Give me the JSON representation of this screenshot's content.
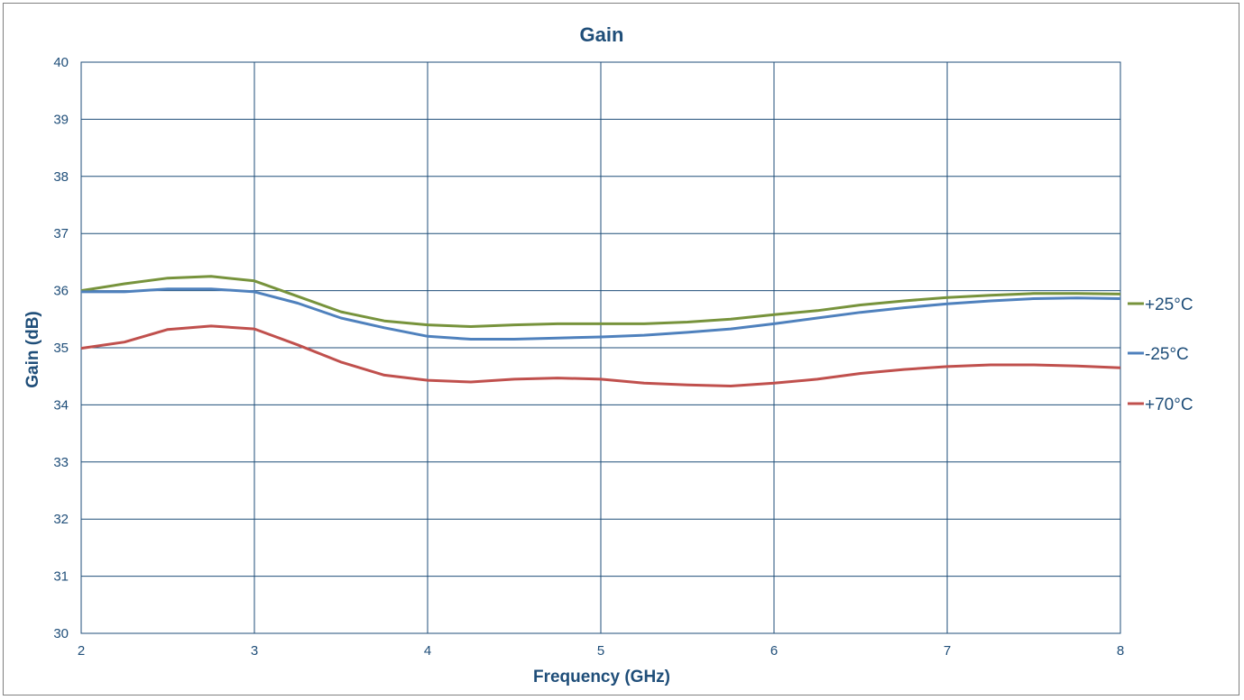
{
  "chart_data": {
    "type": "line",
    "title": "Gain",
    "xlabel": "Frequency (GHz)",
    "ylabel": "Gain (dB)",
    "xlim": [
      2,
      8
    ],
    "ylim": [
      30,
      40
    ],
    "xticks": [
      "2",
      "3",
      "4",
      "5",
      "6",
      "7",
      "8"
    ],
    "yticks": [
      "30",
      "31",
      "32",
      "33",
      "34",
      "35",
      "36",
      "37",
      "38",
      "39",
      "40"
    ],
    "grid": true,
    "legend_position": "right",
    "x": [
      2.0,
      2.25,
      2.5,
      2.75,
      3.0,
      3.25,
      3.5,
      3.75,
      4.0,
      4.25,
      4.5,
      4.75,
      5.0,
      5.25,
      5.5,
      5.75,
      6.0,
      6.25,
      6.5,
      6.75,
      7.0,
      7.25,
      7.5,
      7.75,
      8.0
    ],
    "series": [
      {
        "name": "+25°C",
        "color": "#77933c",
        "values": [
          36.0,
          36.12,
          36.22,
          36.25,
          36.17,
          35.9,
          35.63,
          35.47,
          35.4,
          35.37,
          35.4,
          35.42,
          35.42,
          35.42,
          35.45,
          35.5,
          35.58,
          35.65,
          35.75,
          35.82,
          35.88,
          35.92,
          35.95,
          35.95,
          35.94
        ]
      },
      {
        "name": "-25°C",
        "color": "#4f81bd",
        "values": [
          35.98,
          35.98,
          36.03,
          36.03,
          35.98,
          35.78,
          35.52,
          35.35,
          35.2,
          35.15,
          35.15,
          35.17,
          35.19,
          35.22,
          35.27,
          35.33,
          35.42,
          35.52,
          35.62,
          35.7,
          35.77,
          35.82,
          35.86,
          35.87,
          35.86
        ]
      },
      {
        "name": "+70°C",
        "color": "#c0504d",
        "values": [
          34.99,
          35.1,
          35.32,
          35.38,
          35.33,
          35.05,
          34.75,
          34.52,
          34.43,
          34.4,
          34.45,
          34.47,
          34.45,
          34.38,
          34.35,
          34.33,
          34.38,
          34.45,
          34.55,
          34.62,
          34.67,
          34.7,
          34.7,
          34.68,
          34.65
        ]
      }
    ]
  }
}
